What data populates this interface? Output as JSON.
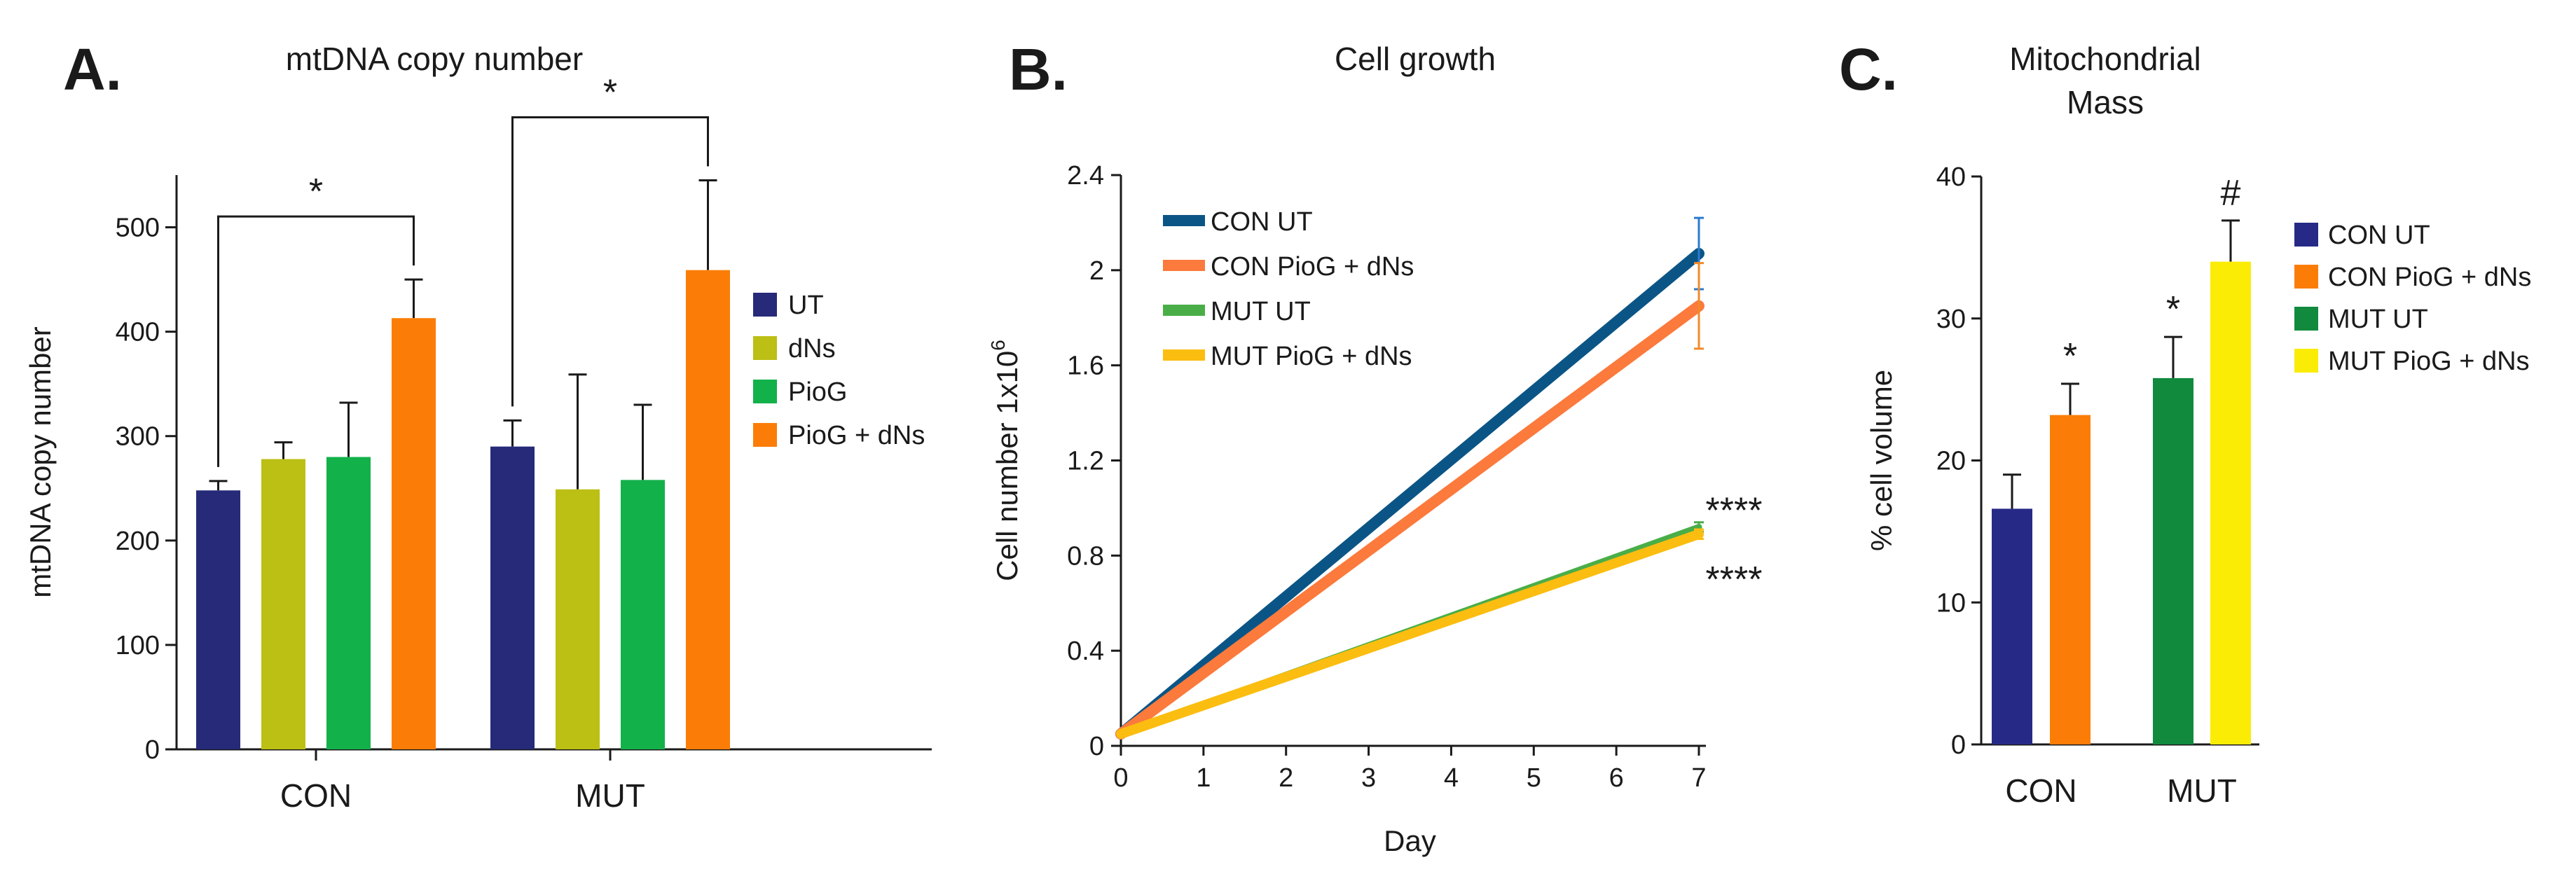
{
  "chart_data": [
    {
      "id": "A",
      "type": "bar",
      "panel_label": "A.",
      "title": "mtDNA copy number",
      "ylabel": "mtDNA copy number",
      "xlabel": "",
      "ylim": [
        0,
        550
      ],
      "yticks": [
        0,
        100,
        200,
        300,
        400,
        500
      ],
      "categories": [
        "CON",
        "MUT"
      ],
      "series": [
        {
          "name": "UT",
          "color": "#262a78",
          "values": [
            248,
            290
          ],
          "errors": [
            9,
            25
          ]
        },
        {
          "name": "dNs",
          "color": "#bcbf14",
          "values": [
            278,
            249
          ],
          "errors": [
            16,
            110
          ]
        },
        {
          "name": "PioG",
          "color": "#12b14a",
          "values": [
            280,
            258
          ],
          "errors": [
            52,
            72
          ]
        },
        {
          "name": "PioG + dNs",
          "color": "#fb7d07",
          "values": [
            413,
            459
          ],
          "errors": [
            37,
            86
          ]
        }
      ],
      "significance": [
        {
          "category": "CON",
          "from_series": 0,
          "to_series": 3,
          "label": "*"
        },
        {
          "category": "MUT",
          "from_series": 0,
          "to_series": 3,
          "label": "*"
        }
      ],
      "legend_position": "right"
    },
    {
      "id": "B",
      "type": "line",
      "panel_label": "B.",
      "title": "Cell growth",
      "ylabel": "Cell number 1x10",
      "ylabel_sup": "6",
      "xlabel": "Day",
      "xlim": [
        0,
        7
      ],
      "ylim": [
        0,
        2.4
      ],
      "xticks": [
        0,
        1,
        2,
        3,
        4,
        5,
        6,
        7
      ],
      "yticks": [
        0,
        0.4,
        0.8,
        1.2,
        1.6,
        2,
        2.4
      ],
      "ytick_labels": [
        "0",
        "0.4",
        "0.8",
        "1.2",
        "1.6",
        "2",
        "2.4"
      ],
      "series": [
        {
          "name": "CON UT",
          "color": "#0b5586",
          "x": [
            0,
            7
          ],
          "y": [
            0.05,
            2.07
          ],
          "error_end": 0.15,
          "error_color": "#2a7bd0"
        },
        {
          "name": "CON PioG + dNs",
          "color": "#fb7a3c",
          "x": [
            0,
            7
          ],
          "y": [
            0.05,
            1.85
          ],
          "error_end": 0.18,
          "error_color": "#f08a2a"
        },
        {
          "name": "MUT UT",
          "color": "#4aae48",
          "x": [
            0,
            7
          ],
          "y": [
            0.05,
            0.92
          ],
          "error_end": 0.02,
          "error_color": "#4aae48"
        },
        {
          "name": "MUT PioG + dNs",
          "color": "#fbbd10",
          "x": [
            0,
            7
          ],
          "y": [
            0.05,
            0.89
          ],
          "error_end": 0.02,
          "error_color": "#fbbd10"
        }
      ],
      "annotations": [
        {
          "text": "****",
          "x": 7,
          "y": 1.02
        },
        {
          "text": "****",
          "x": 7,
          "y": 0.73
        }
      ],
      "legend_position": "top-left"
    },
    {
      "id": "C",
      "type": "bar",
      "panel_label": "C.",
      "title": "Mitochondrial",
      "title_line2": "Mass",
      "ylabel": "% cell volume",
      "xlabel": "",
      "ylim": [
        0,
        40
      ],
      "yticks": [
        0,
        10,
        20,
        30,
        40
      ],
      "categories": [
        "CON",
        "MUT"
      ],
      "series": [
        {
          "name": "CON UT",
          "color": "#262a86",
          "group": 0,
          "value": 16.6,
          "error": 2.4,
          "sig": ""
        },
        {
          "name": "CON PioG + dNs",
          "color": "#fb7d07",
          "group": 0,
          "value": 23.2,
          "error": 2.2,
          "sig": "*"
        },
        {
          "name": "MUT UT",
          "color": "#118a3e",
          "group": 1,
          "value": 25.8,
          "error": 2.9,
          "sig": "*"
        },
        {
          "name": "MUT PioG + dNs",
          "color": "#fbec05",
          "group": 1,
          "value": 34.0,
          "error": 2.9,
          "sig": "#"
        }
      ],
      "legend_position": "right"
    }
  ]
}
